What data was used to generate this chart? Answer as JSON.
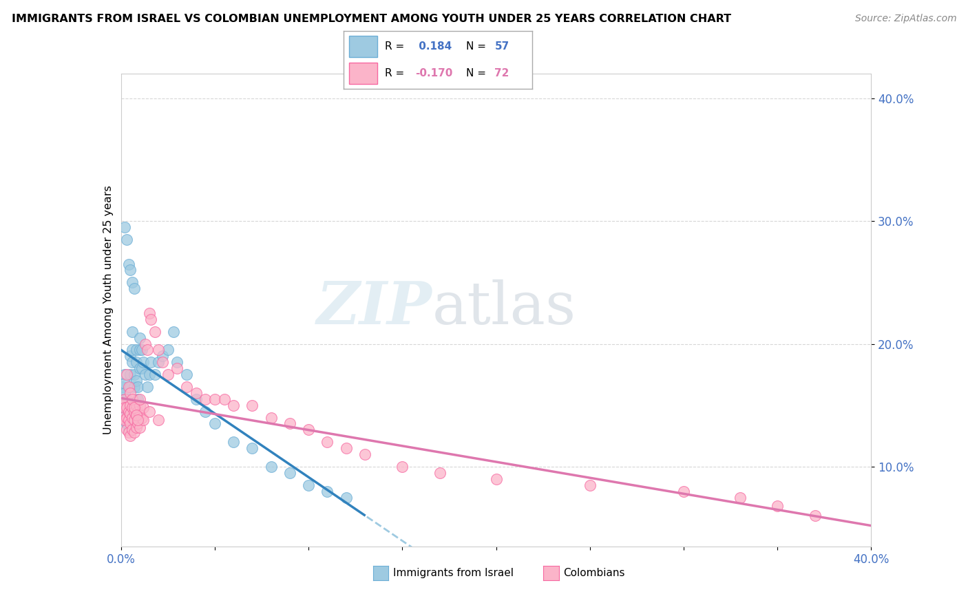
{
  "title": "IMMIGRANTS FROM ISRAEL VS COLOMBIAN UNEMPLOYMENT AMONG YOUTH UNDER 25 YEARS CORRELATION CHART",
  "source": "Source: ZipAtlas.com",
  "ylabel": "Unemployment Among Youth under 25 years",
  "color_blue": "#9ecae1",
  "color_pink": "#fbb4c9",
  "line_blue_solid": "#3182bd",
  "line_blue_dash": "#9ecae1",
  "line_pink": "#de77ae",
  "r_blue": " 0.184",
  "n_blue": "57",
  "r_pink": "-0.170",
  "n_pink": "72",
  "label_blue": "Immigrants from Israel",
  "label_pink": "Colombians",
  "tick_color": "#4472c4",
  "watermark_zip": "ZIP",
  "watermark_atlas": "atlas",
  "xlim": [
    0.0,
    0.4
  ],
  "ylim": [
    0.035,
    0.42
  ],
  "ytick_values": [
    0.1,
    0.2,
    0.3,
    0.4
  ],
  "ytick_labels": [
    "10.0%",
    "20.0%",
    "30.0%",
    "40.0%"
  ],
  "blue_x": [
    0.001,
    0.001,
    0.002,
    0.002,
    0.002,
    0.002,
    0.003,
    0.003,
    0.003,
    0.004,
    0.004,
    0.005,
    0.005,
    0.005,
    0.006,
    0.006,
    0.006,
    0.007,
    0.007,
    0.008,
    0.008,
    0.008,
    0.009,
    0.009,
    0.01,
    0.01,
    0.01,
    0.011,
    0.011,
    0.012,
    0.013,
    0.014,
    0.015,
    0.016,
    0.018,
    0.02,
    0.022,
    0.025,
    0.028,
    0.03,
    0.035,
    0.04,
    0.045,
    0.05,
    0.06,
    0.07,
    0.08,
    0.09,
    0.1,
    0.11,
    0.12,
    0.002,
    0.003,
    0.004,
    0.005,
    0.006,
    0.007
  ],
  "blue_y": [
    0.165,
    0.155,
    0.175,
    0.168,
    0.16,
    0.148,
    0.145,
    0.155,
    0.135,
    0.14,
    0.13,
    0.19,
    0.175,
    0.165,
    0.21,
    0.195,
    0.185,
    0.175,
    0.165,
    0.195,
    0.185,
    0.17,
    0.165,
    0.155,
    0.205,
    0.195,
    0.18,
    0.195,
    0.18,
    0.185,
    0.175,
    0.165,
    0.175,
    0.185,
    0.175,
    0.185,
    0.19,
    0.195,
    0.21,
    0.185,
    0.175,
    0.155,
    0.145,
    0.135,
    0.12,
    0.115,
    0.1,
    0.095,
    0.085,
    0.08,
    0.075,
    0.295,
    0.285,
    0.265,
    0.26,
    0.25,
    0.245
  ],
  "pink_x": [
    0.001,
    0.001,
    0.002,
    0.002,
    0.002,
    0.003,
    0.003,
    0.003,
    0.004,
    0.004,
    0.004,
    0.005,
    0.005,
    0.005,
    0.005,
    0.006,
    0.006,
    0.006,
    0.007,
    0.007,
    0.007,
    0.008,
    0.008,
    0.008,
    0.009,
    0.009,
    0.01,
    0.01,
    0.01,
    0.011,
    0.012,
    0.012,
    0.013,
    0.014,
    0.015,
    0.016,
    0.018,
    0.02,
    0.022,
    0.025,
    0.03,
    0.035,
    0.04,
    0.045,
    0.05,
    0.055,
    0.06,
    0.07,
    0.08,
    0.09,
    0.1,
    0.11,
    0.12,
    0.13,
    0.15,
    0.17,
    0.2,
    0.25,
    0.3,
    0.33,
    0.35,
    0.37,
    0.003,
    0.004,
    0.005,
    0.006,
    0.007,
    0.008,
    0.009,
    0.01,
    0.015,
    0.02
  ],
  "pink_y": [
    0.15,
    0.14,
    0.155,
    0.148,
    0.138,
    0.148,
    0.14,
    0.13,
    0.145,
    0.138,
    0.128,
    0.15,
    0.143,
    0.135,
    0.125,
    0.148,
    0.14,
    0.13,
    0.145,
    0.138,
    0.128,
    0.15,
    0.142,
    0.132,
    0.145,
    0.135,
    0.15,
    0.142,
    0.132,
    0.14,
    0.148,
    0.138,
    0.2,
    0.195,
    0.225,
    0.22,
    0.21,
    0.195,
    0.185,
    0.175,
    0.18,
    0.165,
    0.16,
    0.155,
    0.155,
    0.155,
    0.15,
    0.15,
    0.14,
    0.135,
    0.13,
    0.12,
    0.115,
    0.11,
    0.1,
    0.095,
    0.09,
    0.085,
    0.08,
    0.075,
    0.068,
    0.06,
    0.175,
    0.165,
    0.16,
    0.155,
    0.148,
    0.142,
    0.138,
    0.155,
    0.145,
    0.138
  ]
}
